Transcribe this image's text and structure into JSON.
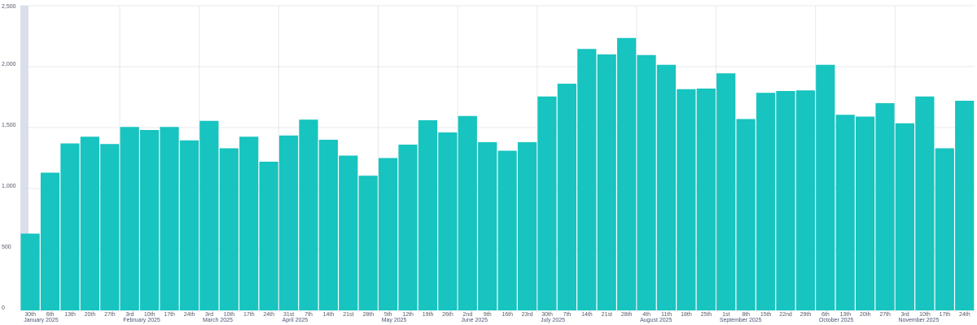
{
  "chart_data": {
    "type": "bar",
    "title": "",
    "xlabel": "",
    "ylabel": "",
    "ylim": [
      0,
      2500
    ],
    "yticks": [
      "0",
      "500",
      "1,000",
      "1,500",
      "2,000",
      "2,500"
    ],
    "ytick_values": [
      0,
      500,
      1000,
      1500,
      2000,
      2500
    ],
    "grid": true,
    "legend": "none",
    "colors": {
      "bar": "#17c4bf",
      "highlight": "#d3d9e6",
      "grid": "#e6e8ee",
      "text": "#555a66"
    },
    "categories": [
      "30th",
      "6th",
      "13th",
      "20th",
      "27th",
      "3rd",
      "10th",
      "17th",
      "24th",
      "3rd",
      "10th",
      "17th",
      "24th",
      "31st",
      "7th",
      "14th",
      "21st",
      "28th",
      "5th",
      "12th",
      "19th",
      "26th",
      "2nd",
      "9th",
      "16th",
      "23rd",
      "30th",
      "7th",
      "14th",
      "21st",
      "28th",
      "4th",
      "11th",
      "18th",
      "25th",
      "1st",
      "8th",
      "15th",
      "22nd",
      "29th",
      "6th",
      "13th",
      "20th",
      "27th",
      "3rd",
      "10th",
      "17th",
      "24th"
    ],
    "values": [
      630,
      1130,
      1370,
      1425,
      1365,
      1505,
      1480,
      1505,
      1395,
      1555,
      1330,
      1425,
      1220,
      1435,
      1565,
      1400,
      1270,
      1105,
      1250,
      1360,
      1560,
      1460,
      1595,
      1380,
      1310,
      1380,
      1755,
      1860,
      2145,
      2100,
      2235,
      2095,
      2015,
      1815,
      1820,
      1945,
      1570,
      1785,
      1800,
      1805,
      2015,
      1605,
      1590,
      1700,
      1535,
      1755,
      1330,
      1720
    ],
    "months": [
      {
        "label": "January 2025",
        "index": 0
      },
      {
        "label": "February 2025",
        "index": 5
      },
      {
        "label": "March 2025",
        "index": 9
      },
      {
        "label": "April 2025",
        "index": 13
      },
      {
        "label": "May 2025",
        "index": 18
      },
      {
        "label": "June 2025",
        "index": 22
      },
      {
        "label": "July 2025",
        "index": 26
      },
      {
        "label": "August 2025",
        "index": 31
      },
      {
        "label": "September 2025",
        "index": 35
      },
      {
        "label": "October 2025",
        "index": 40
      },
      {
        "label": "November 2025",
        "index": 44
      }
    ]
  }
}
